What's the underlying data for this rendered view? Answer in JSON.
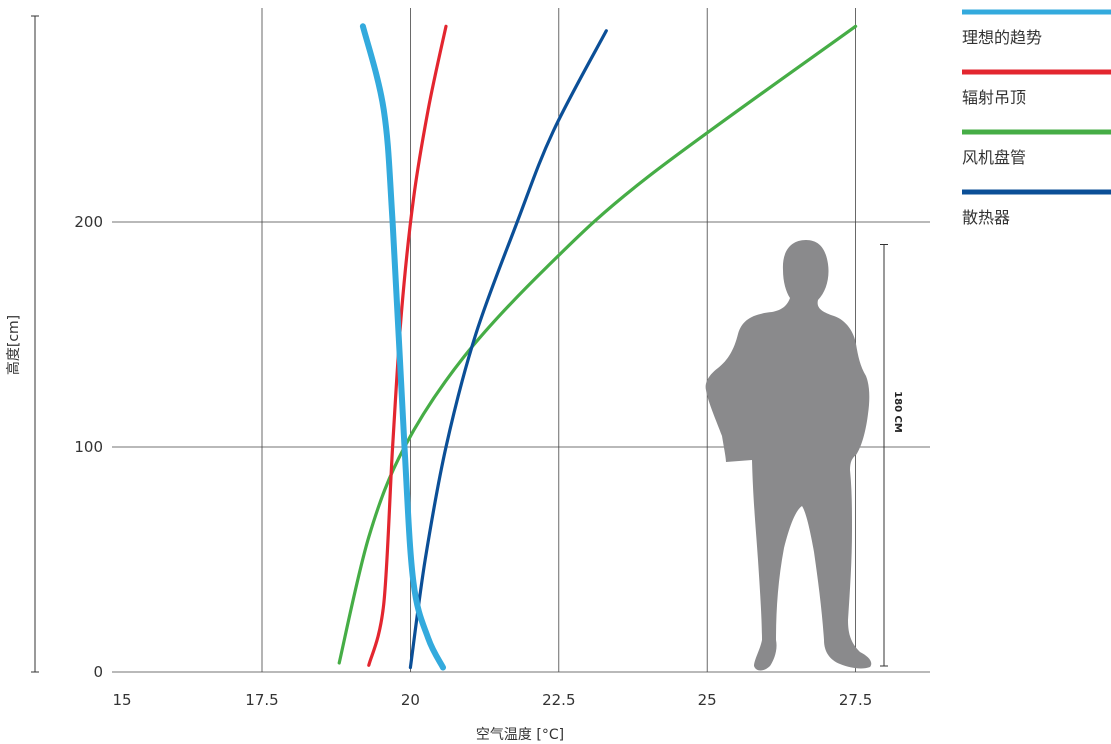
{
  "chart_data": {
    "type": "line",
    "title": "",
    "xlabel": "空气温度 [°C]",
    "ylabel": "高度[cm]",
    "xlim": [
      15,
      27.5
    ],
    "ylim": [
      0,
      200
    ],
    "x_ticks": [
      "15",
      "17.5",
      "20",
      "22.5",
      "25",
      "27.5"
    ],
    "y_ticks": [
      "0",
      "100",
      "200"
    ],
    "grid": true,
    "legend_position": "top-right",
    "series": [
      {
        "name": "理想的趋势",
        "color": "#33aadd",
        "points": [
          [
            20.55,
            2
          ],
          [
            20.3,
            15
          ],
          [
            20.05,
            40
          ],
          [
            19.9,
            100
          ],
          [
            19.7,
            200
          ],
          [
            19.55,
            250
          ],
          [
            19.2,
            287
          ]
        ]
      },
      {
        "name": "辐射吊顶",
        "color": "#e3262f",
        "points": [
          [
            19.3,
            3
          ],
          [
            19.55,
            30
          ],
          [
            19.7,
            100
          ],
          [
            19.85,
            160
          ],
          [
            20.05,
            210
          ],
          [
            20.3,
            250
          ],
          [
            20.6,
            287
          ]
        ]
      },
      {
        "name": "风机盘管",
        "color": "#46ad46",
        "points": [
          [
            18.8,
            4
          ],
          [
            19.3,
            60
          ],
          [
            19.9,
            100
          ],
          [
            20.9,
            140
          ],
          [
            22.3,
            180
          ],
          [
            24.0,
            220
          ],
          [
            27.5,
            287
          ]
        ]
      },
      {
        "name": "散热器",
        "color": "#0b4f97",
        "points": [
          [
            20.0,
            2
          ],
          [
            20.25,
            50
          ],
          [
            20.6,
            100
          ],
          [
            21.1,
            150
          ],
          [
            21.8,
            200
          ],
          [
            22.4,
            240
          ],
          [
            23.3,
            285
          ]
        ]
      }
    ],
    "annotation": {
      "label": "180 CM",
      "y_from": 0,
      "y_to": 190,
      "x": 27.7
    }
  }
}
